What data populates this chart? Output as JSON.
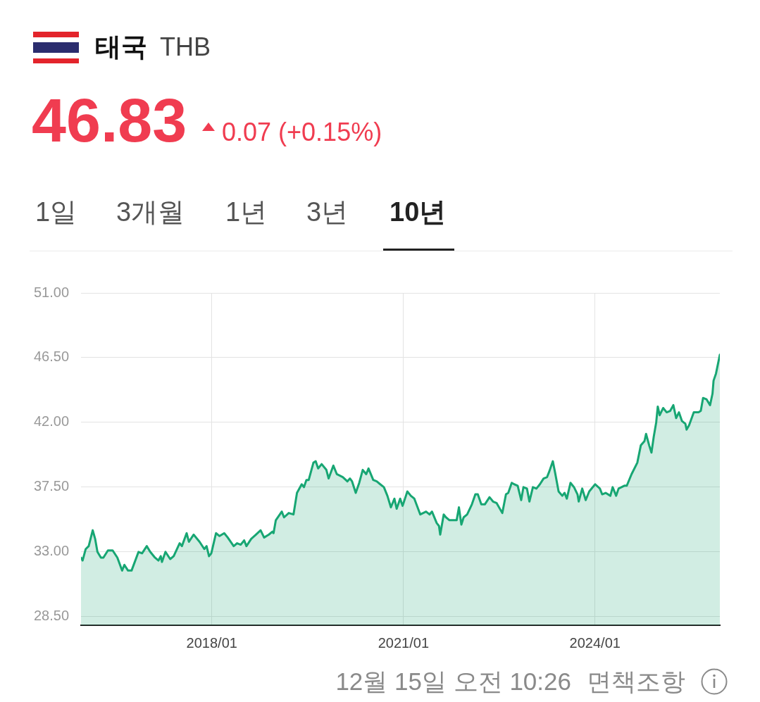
{
  "chart_data": {
    "type": "area",
    "title": "태국",
    "subtitle": "THB",
    "annotations": [
      "46.83",
      "0.07 (+0.15%)",
      "1일",
      "3개월",
      "1년",
      "3년",
      "10년",
      "12월 15일 오전 10:26",
      "면책조항"
    ],
    "x": [
      "2015-12-15",
      "2015-12-24",
      "2016-01-11",
      "2016-01-28",
      "2016-02-20",
      "2016-03-05",
      "2016-03-18",
      "2016-04-07",
      "2016-04-21",
      "2016-05-17",
      "2016-06-13",
      "2016-07-10",
      "2016-08-06",
      "2016-08-19",
      "2016-09-09",
      "2016-09-29",
      "2016-11-08",
      "2016-11-28",
      "2016-12-25",
      "2017-01-14",
      "2017-02-10",
      "2017-03-02",
      "2017-03-15",
      "2017-03-22",
      "2017-04-11",
      "2017-05-08",
      "2017-05-28",
      "2017-07-01",
      "2017-07-14",
      "2017-08-10",
      "2017-08-23",
      "2017-09-19",
      "2017-10-23",
      "2017-11-19",
      "2017-12-02",
      "2017-12-16",
      "2017-12-29",
      "2018-01-25",
      "2018-02-14",
      "2018-03-13",
      "2018-04-02",
      "2018-05-06",
      "2018-05-26",
      "2018-06-15",
      "2018-07-05",
      "2018-07-18",
      "2018-08-14",
      "2018-09-10",
      "2018-10-07",
      "2018-10-27",
      "2018-11-23",
      "2018-12-13",
      "2018-12-20",
      "2019-01-02",
      "2019-02-05",
      "2019-02-18",
      "2019-03-17",
      "2019-04-13",
      "2019-05-03",
      "2019-05-30",
      "2019-06-12",
      "2019-06-26",
      "2019-07-09",
      "2019-08-05",
      "2019-08-18",
      "2019-09-01",
      "2019-09-21",
      "2019-10-18",
      "2019-10-31",
      "2019-11-27",
      "2019-12-17",
      "2020-01-20",
      "2020-02-15",
      "2020-03-01",
      "2020-03-13",
      "2020-04-03",
      "2020-04-23",
      "2020-05-13",
      "2020-06-02",
      "2020-06-15",
      "2020-07-12",
      "2020-08-01",
      "2020-08-21",
      "2020-09-11",
      "2020-10-01",
      "2020-10-21",
      "2020-11-10",
      "2020-11-23",
      "2020-12-13",
      "2020-12-27",
      "2021-01-23",
      "2021-02-12",
      "2021-03-04",
      "2021-04-07",
      "2021-05-10",
      "2021-05-30",
      "2021-06-13",
      "2021-07-10",
      "2021-07-23",
      "2021-07-30",
      "2021-08-19",
      "2021-09-01",
      "2021-09-21",
      "2021-10-11",
      "2021-11-01",
      "2021-11-14",
      "2021-11-28",
      "2021-12-11",
      "2021-12-31",
      "2022-01-27",
      "2022-02-16",
      "2022-03-02",
      "2022-03-22",
      "2022-04-11",
      "2022-05-08",
      "2022-05-28",
      "2022-06-17",
      "2022-07-20",
      "2022-08-10",
      "2022-08-23",
      "2022-09-12",
      "2022-09-26",
      "2022-10-16",
      "2022-11-05",
      "2022-11-18",
      "2022-12-08",
      "2022-12-22",
      "2023-01-11",
      "2023-01-31",
      "2023-02-20",
      "2023-03-13",
      "2023-04-02",
      "2023-04-15",
      "2023-05-05",
      "2023-05-18",
      "2023-06-07",
      "2023-06-28",
      "2023-07-11",
      "2023-07-24",
      "2023-08-14",
      "2023-09-03",
      "2023-09-23",
      "2023-09-30",
      "2023-10-20",
      "2023-11-09",
      "2023-11-29",
      "2024-01-02",
      "2024-01-29",
      "2024-02-11",
      "2024-03-02",
      "2024-03-29",
      "2024-04-11",
      "2024-05-01",
      "2024-05-15",
      "2024-06-17",
      "2024-07-01",
      "2024-07-28",
      "2024-08-30",
      "2024-09-19",
      "2024-10-10",
      "2024-10-19",
      "2024-11-06",
      "2024-11-19",
      "2024-12-02",
      "2024-12-16",
      "2024-12-25",
      "2025-01-05",
      "2025-01-25",
      "2025-02-14",
      "2025-03-06",
      "2025-03-24",
      "2025-04-09",
      "2025-04-25",
      "2025-05-12",
      "2025-06-01",
      "2025-06-08",
      "2025-06-22",
      "2025-07-19",
      "2025-08-15",
      "2025-08-28",
      "2025-09-10",
      "2025-09-30",
      "2025-10-20",
      "2025-11-03",
      "2025-11-09",
      "2025-11-23",
      "2025-12-15"
    ],
    "series": [
      {
        "color": "#17a673",
        "values": [
          32.6,
          32.4,
          33.2,
          33.4,
          34.5,
          33.9,
          33.0,
          32.6,
          32.6,
          33.1,
          33.1,
          32.6,
          31.7,
          32.1,
          31.7,
          31.7,
          33.0,
          32.9,
          33.4,
          33.0,
          32.6,
          32.4,
          32.7,
          32.3,
          33.0,
          32.5,
          32.7,
          33.6,
          33.4,
          34.3,
          33.7,
          34.2,
          33.7,
          33.2,
          33.4,
          32.7,
          32.9,
          34.3,
          34.1,
          34.3,
          34.0,
          33.4,
          33.6,
          33.5,
          33.8,
          33.4,
          33.9,
          34.2,
          34.5,
          34.0,
          34.2,
          34.4,
          34.3,
          35.2,
          35.8,
          35.4,
          35.7,
          35.6,
          37.1,
          37.7,
          37.5,
          38.0,
          38.0,
          39.2,
          39.3,
          38.8,
          39.1,
          38.7,
          38.1,
          39.0,
          38.4,
          38.2,
          37.9,
          38.1,
          37.9,
          37.1,
          37.8,
          38.7,
          38.4,
          38.8,
          38.0,
          37.9,
          37.7,
          37.5,
          36.9,
          36.1,
          36.7,
          36.0,
          36.7,
          36.2,
          37.2,
          36.9,
          36.7,
          35.6,
          35.8,
          35.6,
          35.8,
          35.0,
          34.8,
          34.2,
          35.6,
          35.4,
          35.2,
          35.2,
          35.2,
          36.1,
          34.9,
          35.4,
          35.6,
          36.3,
          37.0,
          37.0,
          36.3,
          36.3,
          36.8,
          36.5,
          36.4,
          35.7,
          37.0,
          37.1,
          37.8,
          37.7,
          37.6,
          36.6,
          37.5,
          37.4,
          36.5,
          37.5,
          37.4,
          37.7,
          38.1,
          38.2,
          38.6,
          39.3,
          38.5,
          37.2,
          36.9,
          37.1,
          36.7,
          37.8,
          37.5,
          37.0,
          36.5,
          37.4,
          36.6,
          37.2,
          37.7,
          37.4,
          37.0,
          37.1,
          36.9,
          37.5,
          36.9,
          37.4,
          37.6,
          37.6,
          38.4,
          39.2,
          40.4,
          40.7,
          41.2,
          40.4,
          39.9,
          41.0,
          42.0,
          43.1,
          42.5,
          43.0,
          42.7,
          42.8,
          43.2,
          42.3,
          42.7,
          42.1,
          41.9,
          41.5,
          41.8,
          42.7,
          42.7,
          42.8,
          43.7,
          43.6,
          43.2,
          44.0,
          44.9,
          45.4,
          46.7
        ]
      }
    ],
    "xlim": [
      "2015-12-15",
      "2025-12-15"
    ],
    "xticks": [
      {
        "value": "2018-01",
        "label": "2018/01"
      },
      {
        "value": "2021-01",
        "label": "2021/01"
      },
      {
        "value": "2024-01",
        "label": "2024/01"
      }
    ],
    "ylim": [
      27.9,
      51
    ],
    "yticks": [
      {
        "value": 28.5,
        "label": "28.50"
      },
      {
        "value": 33,
        "label": "33.00"
      },
      {
        "value": 37.5,
        "label": "37.50"
      },
      {
        "value": 42,
        "label": "42.00"
      },
      {
        "value": 46.5,
        "label": "46.50"
      },
      {
        "value": 51,
        "label": "51.00"
      }
    ],
    "grid": true,
    "marker": "none",
    "line_style": "solid"
  }
}
